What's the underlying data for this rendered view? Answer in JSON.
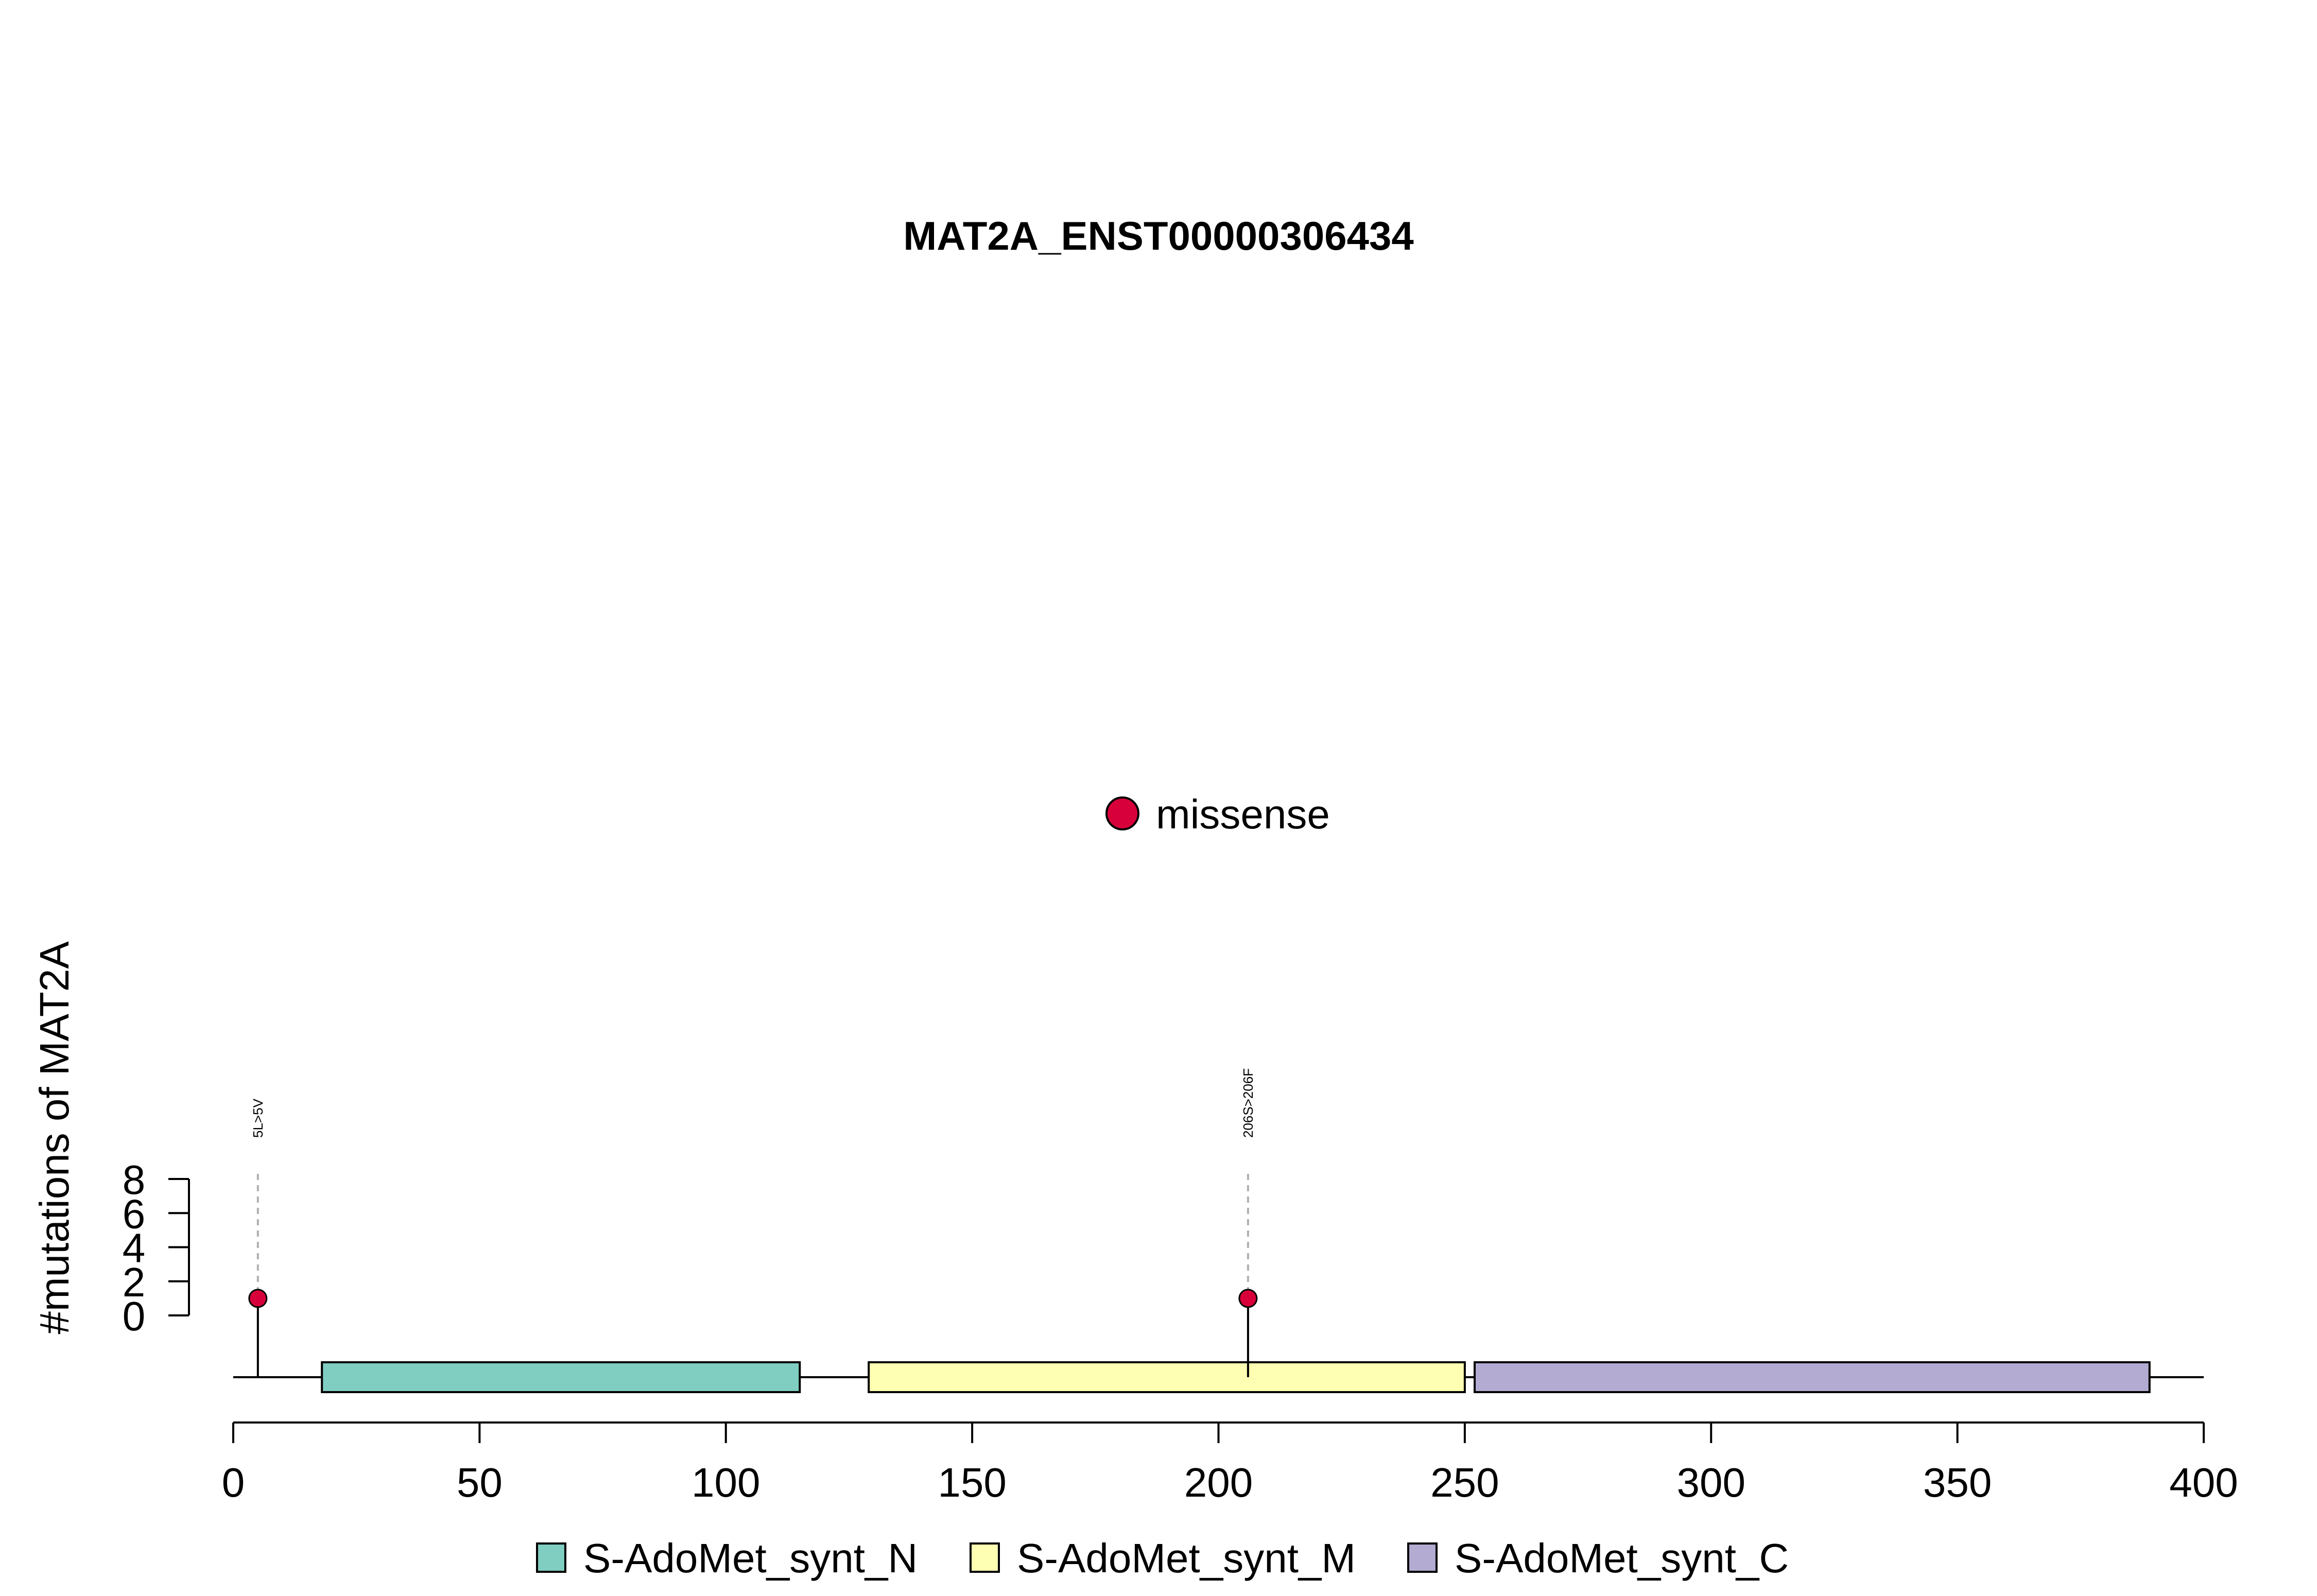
{
  "chart_data": {
    "type": "lollipop",
    "title": "MAT2A_ENST00000306434",
    "ylabel": "#mutations of MAT2A",
    "xlim": [
      0,
      400
    ],
    "x_ticks": [
      0,
      50,
      100,
      150,
      200,
      250,
      300,
      350,
      400
    ],
    "ylim": [
      0,
      8
    ],
    "y_ticks": [
      0,
      2,
      4,
      6,
      8
    ],
    "protein_length": 400,
    "mutation_legend": [
      {
        "label": "missense",
        "color": "#D7003A"
      }
    ],
    "mutations": [
      {
        "position": 5,
        "count": 1,
        "label": "5L>5V",
        "type": "missense"
      },
      {
        "position": 206,
        "count": 1,
        "label": "206S>206F",
        "type": "missense"
      }
    ],
    "domains": [
      {
        "name": "S-AdoMet_synt_N",
        "start": 18,
        "end": 115,
        "color": "#80CDC1"
      },
      {
        "name": "S-AdoMet_synt_M",
        "start": 129,
        "end": 250,
        "color": "#FFFFB3"
      },
      {
        "name": "S-AdoMet_synt_C",
        "start": 252,
        "end": 389,
        "color": "#B3ABD2"
      }
    ]
  }
}
